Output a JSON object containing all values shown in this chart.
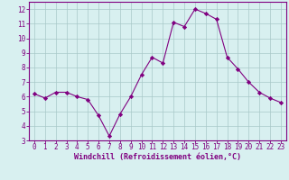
{
  "x": [
    0,
    1,
    2,
    3,
    4,
    5,
    6,
    7,
    8,
    9,
    10,
    11,
    12,
    13,
    14,
    15,
    16,
    17,
    18,
    19,
    20,
    21,
    22,
    23
  ],
  "y": [
    6.2,
    5.9,
    6.3,
    6.3,
    6.0,
    5.8,
    4.7,
    3.3,
    4.8,
    6.0,
    7.5,
    8.7,
    8.3,
    11.1,
    10.8,
    12.0,
    11.7,
    11.3,
    8.7,
    7.9,
    7.0,
    6.3,
    5.9,
    5.6
  ],
  "line_color": "#800080",
  "marker": "D",
  "marker_size": 2.2,
  "bg_color": "#d8f0f0",
  "grid_color": "#a8c8c8",
  "xlabel": "Windchill (Refroidissement éolien,°C)",
  "xlabel_color": "#800080",
  "tick_color": "#800080",
  "spine_color": "#800080",
  "xlim": [
    -0.5,
    23.5
  ],
  "ylim": [
    3,
    12.5
  ],
  "yticks": [
    3,
    4,
    5,
    6,
    7,
    8,
    9,
    10,
    11,
    12
  ],
  "xticks": [
    0,
    1,
    2,
    3,
    4,
    5,
    6,
    7,
    8,
    9,
    10,
    11,
    12,
    13,
    14,
    15,
    16,
    17,
    18,
    19,
    20,
    21,
    22,
    23
  ]
}
